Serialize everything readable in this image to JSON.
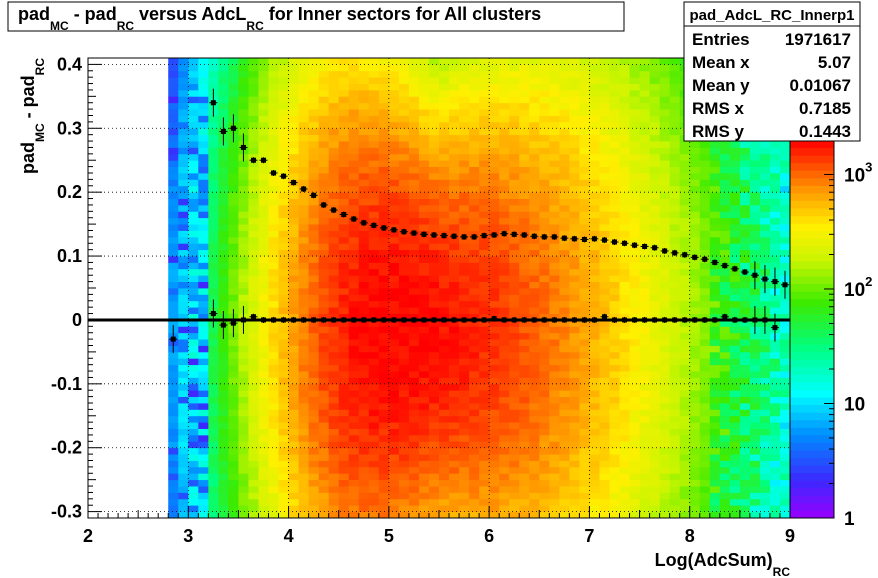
{
  "title": {
    "parts": [
      {
        "text": "pad",
        "sub": false
      },
      {
        "text": "MC",
        "sub": true
      },
      {
        "text": " - pad",
        "sub": false
      },
      {
        "text": "RC",
        "sub": true
      },
      {
        "text": " versus AdcL",
        "sub": false
      },
      {
        "text": "RC",
        "sub": true
      },
      {
        "text": " for Inner sectors for All clusters",
        "sub": false
      }
    ]
  },
  "stats": {
    "name": "pad_AdcL_RC_Innerp1",
    "rows": [
      {
        "label": "Entries",
        "value": "1971617"
      },
      {
        "label": "Mean x",
        "value": "5.07"
      },
      {
        "label": "Mean y",
        "value": "0.01067"
      },
      {
        "label": "RMS x",
        "value": "0.7185"
      },
      {
        "label": "RMS y",
        "value": "0.1443"
      }
    ]
  },
  "colorbar": {
    "scale": "log",
    "range": [
      1,
      2000
    ],
    "labels": [
      {
        "value": 1,
        "text": "1"
      },
      {
        "value": 10,
        "text": "10"
      },
      {
        "value": 100,
        "text": "10",
        "exp": "2"
      },
      {
        "value": 1000,
        "text": "10",
        "exp": "3"
      }
    ]
  },
  "chart_data": {
    "type": "heatmap",
    "title": "pad_MC - pad_RC versus AdcL_RC for Inner sectors for All clusters",
    "xlabel": {
      "main": "Log(AdcSum)",
      "sub": "RC"
    },
    "ylabel": {
      "main": "pad",
      "sub1": "MC",
      "mid": " - pad",
      "sub2": "RC"
    },
    "xlim": [
      2,
      9
    ],
    "ylim": [
      -0.31,
      0.41
    ],
    "xticks": [
      "2",
      "3",
      "4",
      "5",
      "6",
      "7",
      "8",
      "9"
    ],
    "yticks": [
      "-0.3",
      "-0.2",
      "-0.1",
      "0",
      "0.1",
      "0.2",
      "0.3",
      "0.4"
    ],
    "grid": true,
    "z_scale": "log",
    "density": {
      "peak_x": 4.95,
      "peak_y": -0.02,
      "peak_count": 2000
    },
    "series": [
      {
        "name": "mean profile",
        "x": [
          2.85,
          3.25,
          3.35,
          3.45,
          3.55,
          3.65,
          3.75,
          3.85,
          3.95,
          4.05,
          4.15,
          4.25,
          4.35,
          4.45,
          4.55,
          4.65,
          4.75,
          4.85,
          4.95,
          5.05,
          5.15,
          5.25,
          5.35,
          5.45,
          5.55,
          5.65,
          5.75,
          5.85,
          5.95,
          6.05,
          6.15,
          6.25,
          6.35,
          6.45,
          6.55,
          6.65,
          6.75,
          6.85,
          6.95,
          7.05,
          7.15,
          7.25,
          7.35,
          7.45,
          7.55,
          7.65,
          7.75,
          7.85,
          7.95,
          8.05,
          8.15,
          8.25,
          8.35,
          8.45,
          8.55,
          8.65,
          8.75,
          8.85
        ],
        "y": [
          -0.03,
          0.01,
          -0.008,
          -0.005,
          0.0,
          0.005,
          0.0,
          0.0,
          0.0,
          0.0,
          0.0,
          0.0,
          0.0,
          0.0,
          0.0,
          0.0,
          0.0,
          0.0,
          0.0,
          0.0,
          0.0,
          0.0,
          0.0,
          0.0,
          0.0,
          0.0,
          0.0,
          0.0,
          0.0,
          0.002,
          0.0,
          0.0,
          0.0,
          0.0,
          0.0,
          0.0,
          0.0,
          0.0,
          0.0,
          0.0,
          0.005,
          0.0,
          0.0,
          0.0,
          0.0,
          0.0,
          0.0,
          0.0,
          0.0,
          0.0,
          0.0,
          0.0,
          0.005,
          0.0,
          0.0,
          0.0,
          0.0,
          -0.012
        ]
      },
      {
        "name": "rms profile",
        "x": [
          3.25,
          3.35,
          3.45,
          3.55,
          3.65,
          3.75,
          3.85,
          3.95,
          4.05,
          4.15,
          4.25,
          4.35,
          4.45,
          4.55,
          4.65,
          4.75,
          4.85,
          4.95,
          5.05,
          5.15,
          5.25,
          5.35,
          5.45,
          5.55,
          5.65,
          5.75,
          5.85,
          5.95,
          6.05,
          6.15,
          6.25,
          6.35,
          6.45,
          6.55,
          6.65,
          6.75,
          6.85,
          6.95,
          7.05,
          7.15,
          7.25,
          7.35,
          7.45,
          7.55,
          7.65,
          7.75,
          7.85,
          7.95,
          8.05,
          8.15,
          8.25,
          8.35,
          8.45,
          8.55,
          8.65,
          8.75,
          8.85,
          8.95
        ],
        "y": [
          0.34,
          0.295,
          0.3,
          0.27,
          0.25,
          0.25,
          0.23,
          0.225,
          0.215,
          0.205,
          0.195,
          0.18,
          0.172,
          0.165,
          0.158,
          0.152,
          0.148,
          0.144,
          0.141,
          0.138,
          0.136,
          0.134,
          0.133,
          0.132,
          0.131,
          0.13,
          0.13,
          0.132,
          0.133,
          0.135,
          0.134,
          0.133,
          0.131,
          0.13,
          0.13,
          0.128,
          0.127,
          0.126,
          0.127,
          0.125,
          0.122,
          0.12,
          0.117,
          0.115,
          0.113,
          0.108,
          0.105,
          0.102,
          0.098,
          0.095,
          0.09,
          0.085,
          0.08,
          0.075,
          0.07,
          0.064,
          0.06,
          0.055
        ]
      }
    ]
  }
}
